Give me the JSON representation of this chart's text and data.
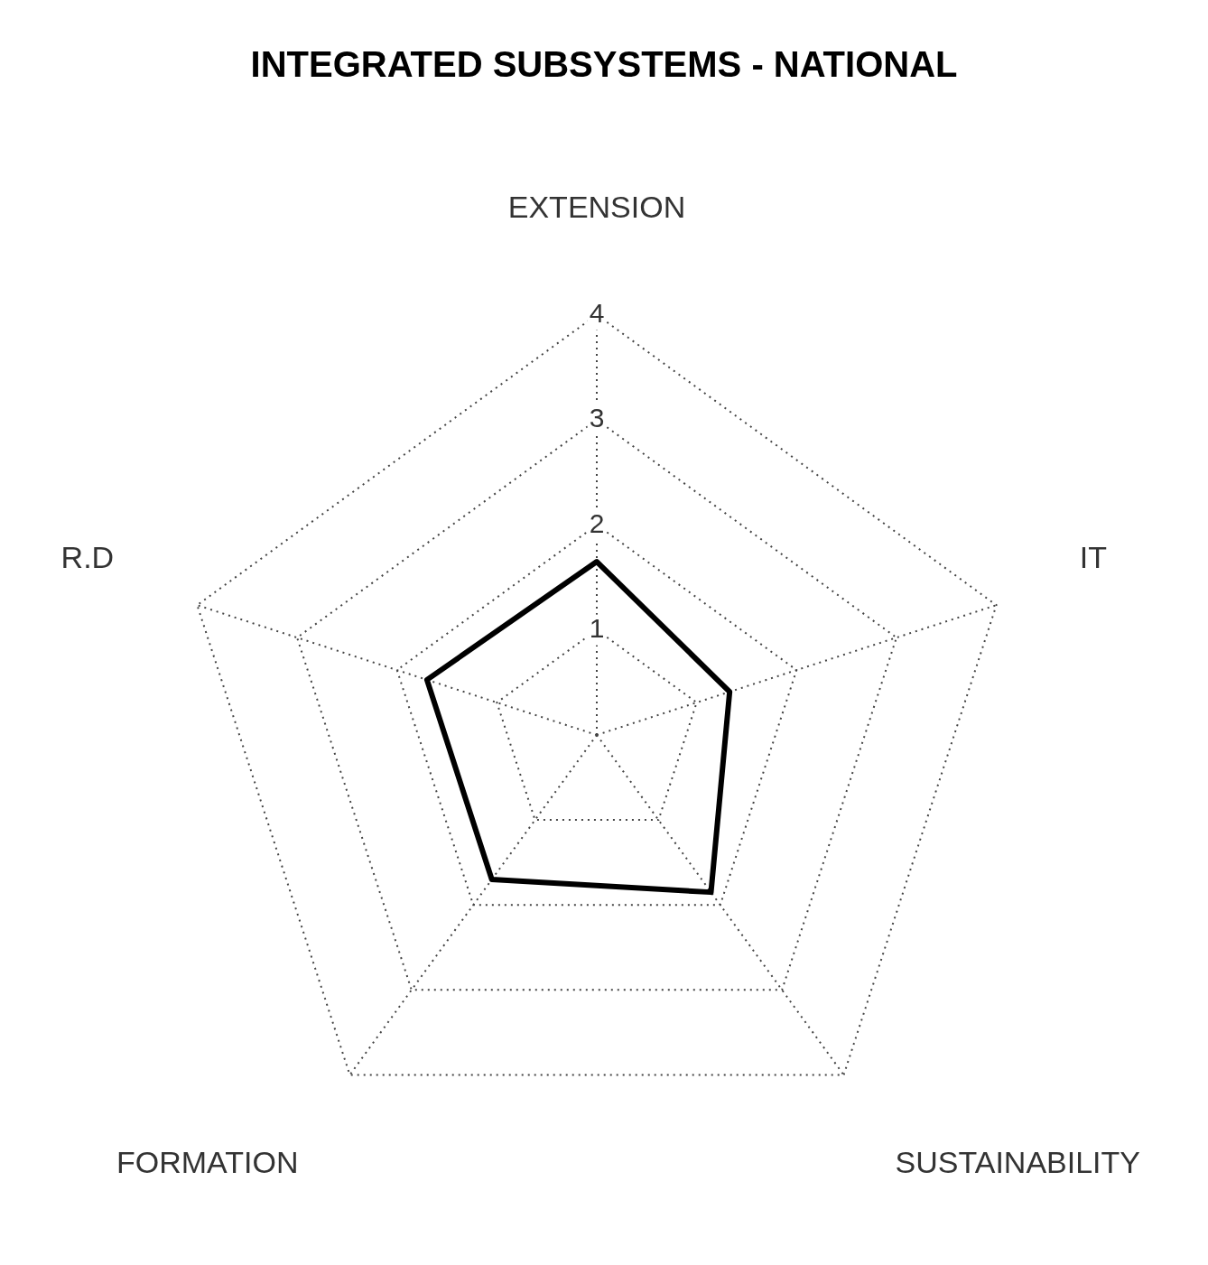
{
  "chart_data": {
    "type": "radar",
    "title": "INTEGRATED SUBSYSTEMS - NATIONAL",
    "categories": [
      "EXTENSION",
      "IT",
      "SUSTAINABILITY",
      "FORMATION",
      "R.D"
    ],
    "series": [
      {
        "color": "#000000",
        "values": [
          1.65,
          1.33,
          1.85,
          1.7,
          1.7
        ]
      }
    ],
    "ylim": [
      0,
      4
    ],
    "yticks": [
      1,
      2,
      3,
      4
    ],
    "grid": true,
    "legend": false,
    "marker": "none",
    "line_style": "solid"
  }
}
